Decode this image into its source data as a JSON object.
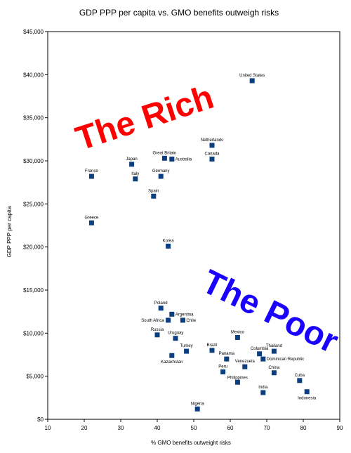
{
  "chart_data": {
    "type": "scatter",
    "title": "GDP PPP per capita vs. GMO benefits outweigh risks",
    "xlabel": "% GMO benefits outweight risks",
    "ylabel": "GDP PPP per capita",
    "xlim": [
      10,
      90
    ],
    "ylim": [
      0,
      45000
    ],
    "x_ticks": [
      "10",
      "20",
      "30",
      "40",
      "50",
      "60",
      "70",
      "80",
      "90"
    ],
    "y_ticks": [
      "$0",
      "$5,000",
      "$10,000",
      "$15,000",
      "$20,000",
      "$25,000",
      "$30,000",
      "$35,000",
      "$40,000",
      "$45,000"
    ],
    "grid": false,
    "legend": "none",
    "marker_color": "#0b3f7f",
    "series": [
      {
        "points": [
          {
            "label": "United States",
            "x": 66,
            "y": 39300
          },
          {
            "label": "Netherlands",
            "x": 55,
            "y": 31800
          },
          {
            "label": "Canada",
            "x": 55,
            "y": 30200
          },
          {
            "label": "Great Britain",
            "x": 42,
            "y": 30300
          },
          {
            "label": "Australia",
            "x": 44,
            "y": 30200
          },
          {
            "label": "Japan",
            "x": 33,
            "y": 29600
          },
          {
            "label": "France",
            "x": 22,
            "y": 28200
          },
          {
            "label": "Italy",
            "x": 34,
            "y": 27900
          },
          {
            "label": "Germany",
            "x": 41,
            "y": 28200
          },
          {
            "label": "Spain",
            "x": 39,
            "y": 25900
          },
          {
            "label": "Greece",
            "x": 22,
            "y": 22800
          },
          {
            "label": "Korea",
            "x": 43,
            "y": 20100
          },
          {
            "label": "Poland",
            "x": 41,
            "y": 12900
          },
          {
            "label": "Argentina",
            "x": 44,
            "y": 12200
          },
          {
            "label": "South Africa",
            "x": 43,
            "y": 11500
          },
          {
            "label": "Chile",
            "x": 47,
            "y": 11500
          },
          {
            "label": "Russia",
            "x": 40,
            "y": 9800
          },
          {
            "label": "Uruguay",
            "x": 45,
            "y": 9400
          },
          {
            "label": "Mexico",
            "x": 62,
            "y": 9500
          },
          {
            "label": "Turkey",
            "x": 48,
            "y": 7900
          },
          {
            "label": "Kazakhstan",
            "x": 44,
            "y": 7400
          },
          {
            "label": "Brazil",
            "x": 55,
            "y": 8000
          },
          {
            "label": "Panama",
            "x": 59,
            "y": 7000
          },
          {
            "label": "Columbia",
            "x": 68,
            "y": 7600
          },
          {
            "label": "Thailand",
            "x": 72,
            "y": 7900
          },
          {
            "label": "Dominican Republic",
            "x": 69,
            "y": 7000
          },
          {
            "label": "Venezuela",
            "x": 64,
            "y": 6100
          },
          {
            "label": "Peru",
            "x": 58,
            "y": 5500
          },
          {
            "label": "China",
            "x": 72,
            "y": 5400
          },
          {
            "label": "Philippines",
            "x": 62,
            "y": 4300
          },
          {
            "label": "Cuba",
            "x": 79,
            "y": 4500
          },
          {
            "label": "India",
            "x": 69,
            "y": 3100
          },
          {
            "label": "Indonesia",
            "x": 81,
            "y": 3200
          },
          {
            "label": "Nigeria",
            "x": 51,
            "y": 1200
          }
        ]
      }
    ],
    "annotations": [
      {
        "text": "The Rich",
        "color": "#ff0000"
      },
      {
        "text": "The Poor",
        "color": "#1a00ff"
      }
    ]
  }
}
